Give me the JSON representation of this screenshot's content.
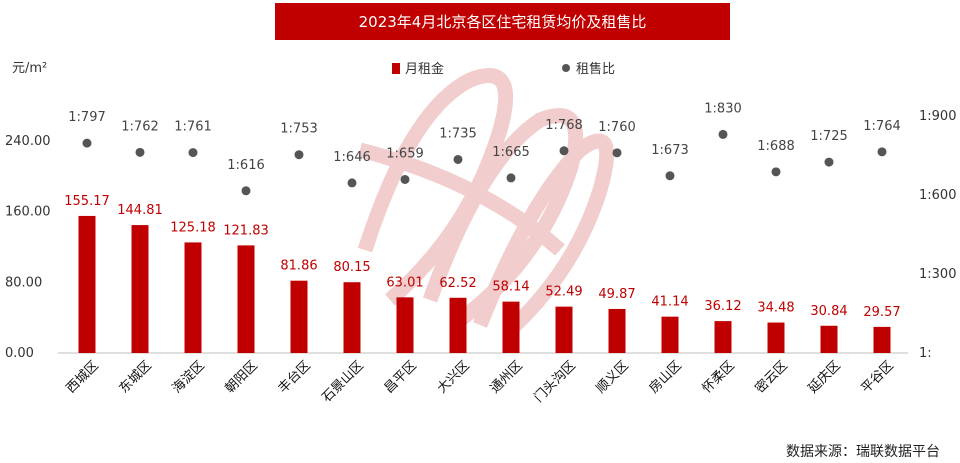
{
  "chart_data": {
    "type": "bar",
    "title": "2023年4月北京各区住宅租赁均价及租售比",
    "y_unit": "元/m²",
    "categories": [
      "西城区",
      "东城区",
      "海淀区",
      "朝阳区",
      "丰台区",
      "石景山区",
      "昌平区",
      "大兴区",
      "通州区",
      "门头沟区",
      "顺义区",
      "房山区",
      "怀柔区",
      "密云区",
      "延庆区",
      "平谷区"
    ],
    "series": [
      {
        "name": "月租金",
        "type": "bar",
        "color": "#c00000",
        "values": [
          155.17,
          144.81,
          125.18,
          121.83,
          81.86,
          80.15,
          63.01,
          62.52,
          58.14,
          52.49,
          49.87,
          41.14,
          36.12,
          34.48,
          30.84,
          29.57
        ],
        "labels": [
          "155.17",
          "144.81",
          "125.18",
          "121.83",
          "81.86",
          "80.15",
          "63.01",
          "62.52",
          "58.14",
          "52.49",
          "49.87",
          "41.14",
          "36.12",
          "34.48",
          "30.84",
          "29.57"
        ]
      },
      {
        "name": "租售比",
        "type": "scatter",
        "color": "#555555",
        "values": [
          797,
          762,
          761,
          616,
          753,
          646,
          659,
          735,
          665,
          768,
          760,
          673,
          830,
          688,
          725,
          764
        ],
        "labels": [
          "1:797",
          "1:762",
          "1:761",
          "1:616",
          "1:753",
          "1:646",
          "1:659",
          "1:735",
          "1:665",
          "1:768",
          "1:760",
          "1:673",
          "1:830",
          "1:688",
          "1:725",
          "1:764"
        ]
      }
    ],
    "y_left": {
      "ticks": [
        0,
        80,
        160,
        240
      ],
      "tick_labels": [
        "0.00",
        "80.00",
        "160.00",
        "240.00"
      ],
      "range": [
        0,
        240
      ]
    },
    "y_right": {
      "ticks": [
        0,
        300,
        600,
        900
      ],
      "tick_labels": [
        "1:",
        "1:300",
        "1:600",
        "1:900"
      ],
      "range": [
        0,
        900
      ]
    },
    "grid": false,
    "legend": "top-center"
  },
  "source": "数据来源：瑞联数据平台"
}
